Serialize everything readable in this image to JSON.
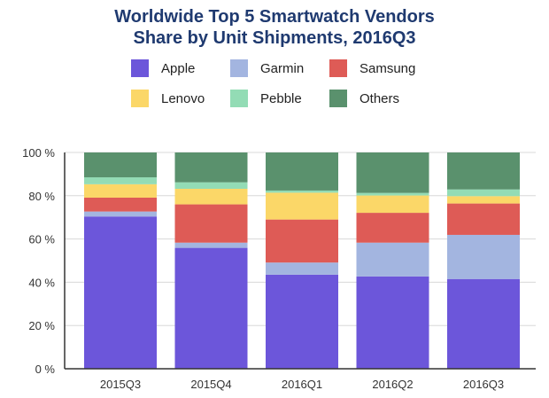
{
  "chart_data": {
    "type": "bar",
    "stacked": true,
    "title": "Worldwide Top 5 Smartwatch Vendors",
    "subtitle": "Share by Unit Shipments, 2016Q3",
    "xlabel": "",
    "ylabel": "",
    "ylim": [
      0,
      100
    ],
    "yticks": [
      "0 %",
      "20 %",
      "40 %",
      "60 %",
      "80 %",
      "100 %"
    ],
    "grid": true,
    "legend_position": "top",
    "categories": [
      "2015Q3",
      "2015Q4",
      "2016Q1",
      "2016Q2",
      "2016Q3"
    ],
    "series": [
      {
        "name": "Apple",
        "color": "#6c56da",
        "values": [
          70.4,
          55.9,
          43.5,
          42.7,
          41.5
        ]
      },
      {
        "name": "Garmin",
        "color": "#a3b5e0",
        "values": [
          2.3,
          2.4,
          5.6,
          15.6,
          20.4
        ]
      },
      {
        "name": "Samsung",
        "color": "#de5b56",
        "values": [
          6.4,
          17.7,
          19.9,
          13.8,
          14.5
        ]
      },
      {
        "name": "Lenovo",
        "color": "#fbd768",
        "values": [
          6.2,
          7.2,
          12.4,
          8.0,
          3.4
        ]
      },
      {
        "name": "Pebble",
        "color": "#93dcb5",
        "values": [
          3.2,
          3.0,
          1.0,
          1.2,
          3.1
        ]
      },
      {
        "name": "Others",
        "color": "#5a916d",
        "values": [
          11.5,
          13.8,
          17.6,
          18.7,
          17.1
        ]
      }
    ]
  }
}
